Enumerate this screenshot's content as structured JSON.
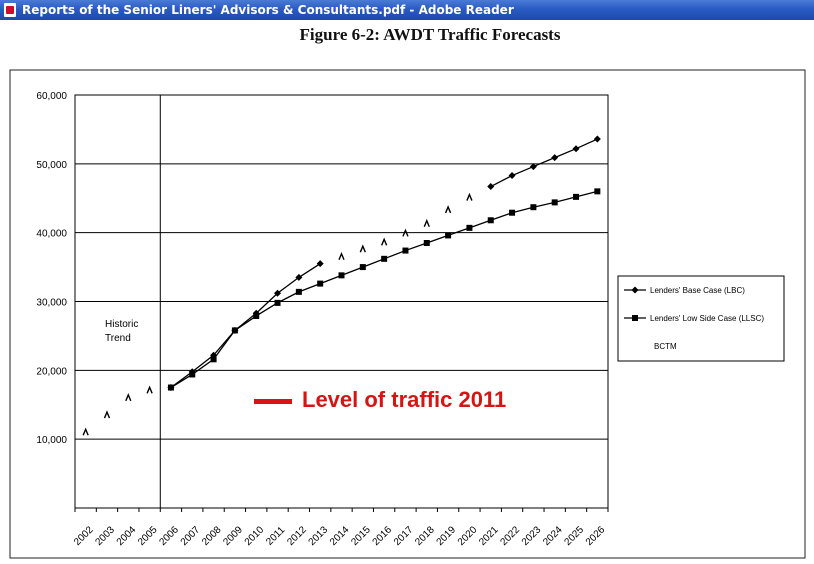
{
  "window": {
    "title": "Reports of the Senior Liners' Advisors & Consultants.pdf - Adobe Reader",
    "icon": "adobe-reader-icon"
  },
  "figure": {
    "title": "Figure 6-2: AWDT Traffic Forecasts"
  },
  "annotation": {
    "text": "Level of traffic 2011",
    "color": "#d71414"
  },
  "chart_data": {
    "type": "line",
    "title": "",
    "xlabel": "",
    "ylabel": "",
    "ylim": [
      0,
      60000
    ],
    "grid": true,
    "legend_position": "right",
    "x": [
      "2002",
      "2003",
      "2004",
      "2005",
      "2006",
      "2007",
      "2008",
      "2009",
      "2010",
      "2011",
      "2012",
      "2013",
      "2014",
      "2015",
      "2016",
      "2017",
      "2018",
      "2019",
      "2020",
      "2021",
      "2022",
      "2023",
      "2024",
      "2025",
      "2026"
    ],
    "yticks": [
      "10,000",
      "20,000",
      "30,000",
      "40,000",
      "50,000",
      "60,000"
    ],
    "historic_label": [
      "Historic",
      "Trend"
    ],
    "series": [
      {
        "name": "Lenders' Base Case (LBC)",
        "marker": "diamond",
        "values": [
          null,
          null,
          null,
          null,
          17500,
          19800,
          22200,
          25800,
          28300,
          31200,
          33500,
          35500,
          null,
          null,
          null,
          null,
          null,
          null,
          null,
          46700,
          48300,
          49600,
          50900,
          52200,
          53600
        ]
      },
      {
        "name": "Lenders' Low Side Case (LLSC)",
        "marker": "square",
        "values": [
          null,
          null,
          null,
          null,
          17500,
          19400,
          21600,
          25800,
          27900,
          29800,
          31400,
          32600,
          33800,
          35000,
          36200,
          37400,
          38500,
          39600,
          40700,
          41800,
          42900,
          43700,
          44400,
          45200,
          46000
        ]
      },
      {
        "name": "BCTM",
        "marker": "caret",
        "values": [
          null,
          null,
          null,
          null,
          null,
          null,
          null,
          null,
          null,
          null,
          null,
          null,
          36500,
          37600,
          38600,
          39900,
          41300,
          43300,
          45100,
          null,
          null,
          null,
          null,
          null,
          null
        ]
      },
      {
        "name": "",
        "marker": "caret",
        "values": [
          11000,
          13500,
          16000,
          17100,
          null,
          null,
          null,
          null,
          null,
          null,
          null,
          null,
          null,
          null,
          null,
          null,
          null,
          null,
          null,
          null,
          null,
          null,
          null,
          null,
          null
        ]
      }
    ]
  }
}
